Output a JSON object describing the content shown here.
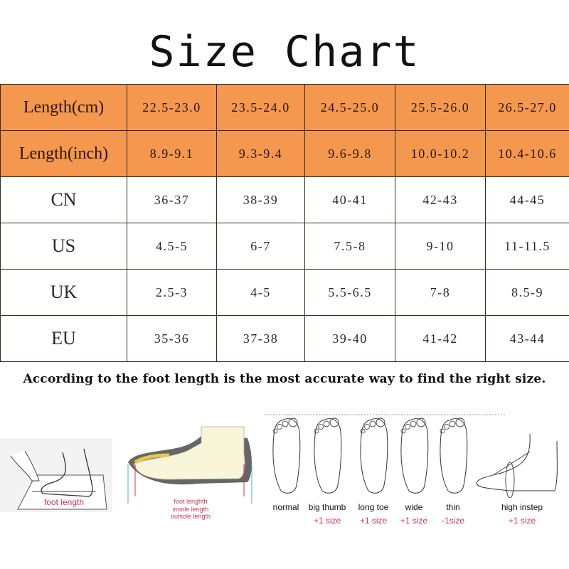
{
  "title": "Size Chart",
  "table": {
    "rows": [
      {
        "label": "Length(cm)",
        "values": [
          "22.5-23.0",
          "23.5-24.0",
          "24.5-25.0",
          "25.5-26.0",
          "26.5-27.0"
        ]
      },
      {
        "label": "Length(inch)",
        "values": [
          "8.9-9.1",
          "9.3-9.4",
          "9.6-9.8",
          "10.0-10.2",
          "10.4-10.6"
        ]
      },
      {
        "label": "CN",
        "values": [
          "36-37",
          "38-39",
          "40-41",
          "42-43",
          "44-45"
        ]
      },
      {
        "label": "US",
        "values": [
          "4.5-5",
          "6-7",
          "7.5-8",
          "9-10",
          "11-11.5"
        ]
      },
      {
        "label": "UK",
        "values": [
          "2.5-3",
          "4-5",
          "5.5-6.5",
          "7-8",
          "8.5-9"
        ]
      },
      {
        "label": "EU",
        "values": [
          "35-36",
          "37-38",
          "39-40",
          "41-42",
          "43-44"
        ]
      }
    ],
    "header_color": "#f4974f"
  },
  "note": "According to the foot length is the most  accurate way to find the right size.",
  "measure": {
    "foot_length_label": "foot length",
    "shoe_labels": [
      "foot lenghth",
      "insole length",
      "outsole length"
    ]
  },
  "foot_types": [
    {
      "name": "normal",
      "adjust": ""
    },
    {
      "name": "big thumb",
      "adjust": "+1 size"
    },
    {
      "name": "long toe",
      "adjust": "+1 size"
    },
    {
      "name": "wide",
      "adjust": "+1 size"
    },
    {
      "name": "thin",
      "adjust": "-1size"
    },
    {
      "name": "high instep",
      "adjust": "+1 size"
    }
  ]
}
